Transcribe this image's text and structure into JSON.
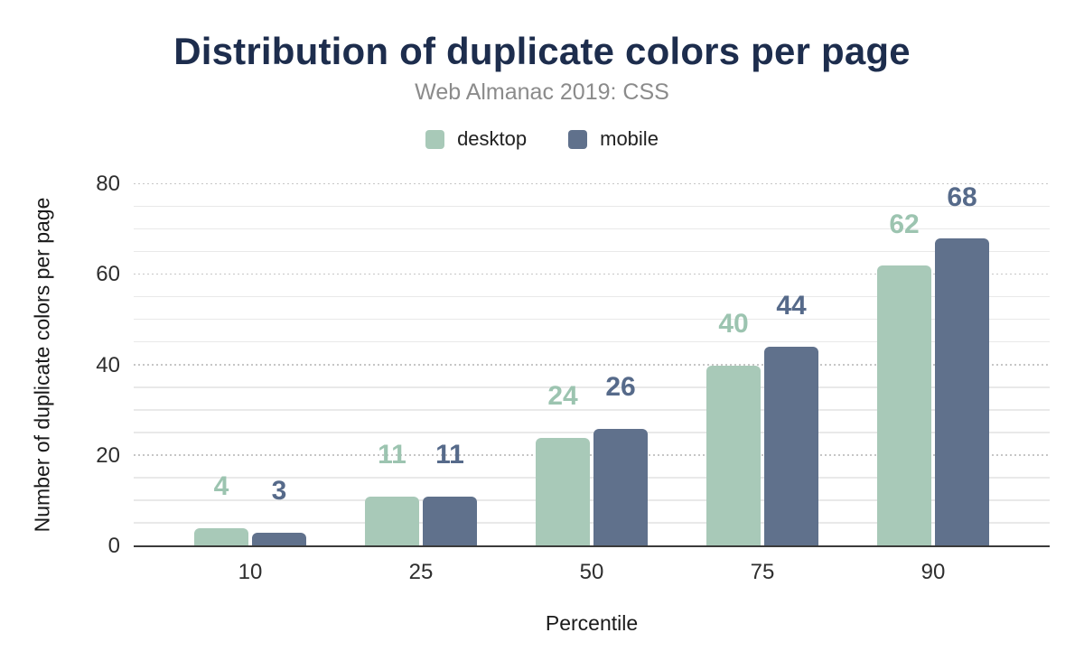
{
  "title": "Distribution of duplicate colors per page",
  "subtitle": "Web Almanac 2019: CSS",
  "colors": {
    "title_text": "#1d2d4d",
    "subtitle_text": "#8b8b8b",
    "desktop": "#a8c9b8",
    "mobile": "#60718c",
    "desktop_label": "#9cc4b0",
    "mobile_label": "#566a8a",
    "grid_minor": "#e9e9e9",
    "grid_major": "#c6c6c6",
    "axis_line": "#3b3b3b",
    "tick_text": "#2e2e2e"
  },
  "legend": {
    "items": [
      {
        "label": "desktop",
        "color": "#a8c9b8"
      },
      {
        "label": "mobile",
        "color": "#60718c"
      }
    ]
  },
  "chart_data": {
    "type": "bar",
    "title": "Distribution of duplicate colors per page",
    "subtitle": "Web Almanac 2019: CSS",
    "categories": [
      "10",
      "25",
      "50",
      "75",
      "90"
    ],
    "series": [
      {
        "name": "desktop",
        "color": "#a8c9b8",
        "label_color": "#9cc4b0",
        "values": [
          4,
          11,
          24,
          40,
          62
        ]
      },
      {
        "name": "mobile",
        "color": "#60718c",
        "label_color": "#566a8a",
        "values": [
          3,
          11,
          26,
          44,
          68
        ]
      }
    ],
    "xlabel": "Percentile",
    "ylabel": "Number of duplicate colors per page",
    "ylim": [
      0,
      80
    ],
    "yticks": [
      0,
      20,
      40,
      60,
      80
    ],
    "grid_minor_step": 5,
    "grid": true,
    "legend_position": "top",
    "data_labels": true
  }
}
